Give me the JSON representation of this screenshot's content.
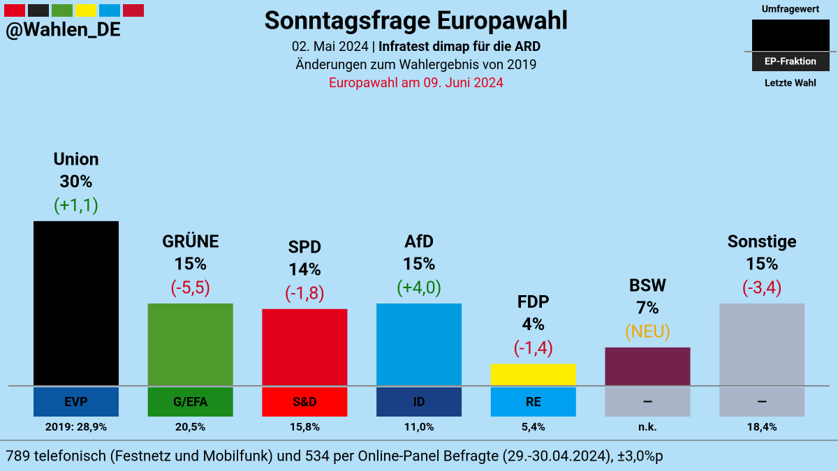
{
  "chart_data": {
    "type": "bar",
    "title": "Sonntagsfrage Europawahl",
    "handle": "@Wahlen_DE",
    "date": "02. Mai 2024",
    "source": "| Infratest dimap für die ARD",
    "subtitle": "Änderungen zum Wahlergebnis von 2019",
    "election_note": "Europawahl am 09. Juni 2024",
    "legend": {
      "current": "Umfragewert",
      "fraction": "EP-Fraktion",
      "previous": "Letzte Wahl"
    },
    "categories": [
      "Union",
      "GRÜNE",
      "SPD",
      "AfD",
      "FDP",
      "BSW",
      "Sonstige"
    ],
    "values": [
      30,
      15,
      14,
      15,
      4,
      7,
      15
    ],
    "value_labels": [
      "30%",
      "15%",
      "14%",
      "15%",
      "4%",
      "7%",
      "15%"
    ],
    "colors": [
      "#000000",
      "#4e9a2d",
      "#e3001b",
      "#009ee0",
      "#ffed00",
      "#74224c",
      "#aab4c8"
    ],
    "changes": [
      "(+1,1)",
      "(-5,5)",
      "(-1,8)",
      "(+4,0)",
      "(-1,4)",
      "(NEU)",
      "(-3,4)"
    ],
    "change_colors": [
      "#0a7a0a",
      "#d0021b",
      "#d0021b",
      "#0a7a0a",
      "#d0021b",
      "#f0a500",
      "#d0021b"
    ],
    "fractions": [
      "EVP",
      "G/EFA",
      "S&D",
      "ID",
      "RE",
      "—",
      "—"
    ],
    "fraction_colors": [
      "#0b56a0",
      "#1a8a1a",
      "#ff0000",
      "#1b3f84",
      "#00a0f0",
      "#aab4c8",
      "#aab4c8"
    ],
    "previous_labels": [
      "2019: 28,9%",
      "20,5%",
      "15,8%",
      "11,0%",
      "5,4%",
      "n.k.",
      "18,4%"
    ],
    "footer": "789 telefonisch (Festnetz und Mobilfunk) und 534 per Online-Panel Befragte (29.-30.04.2024), ±3,0%p"
  }
}
